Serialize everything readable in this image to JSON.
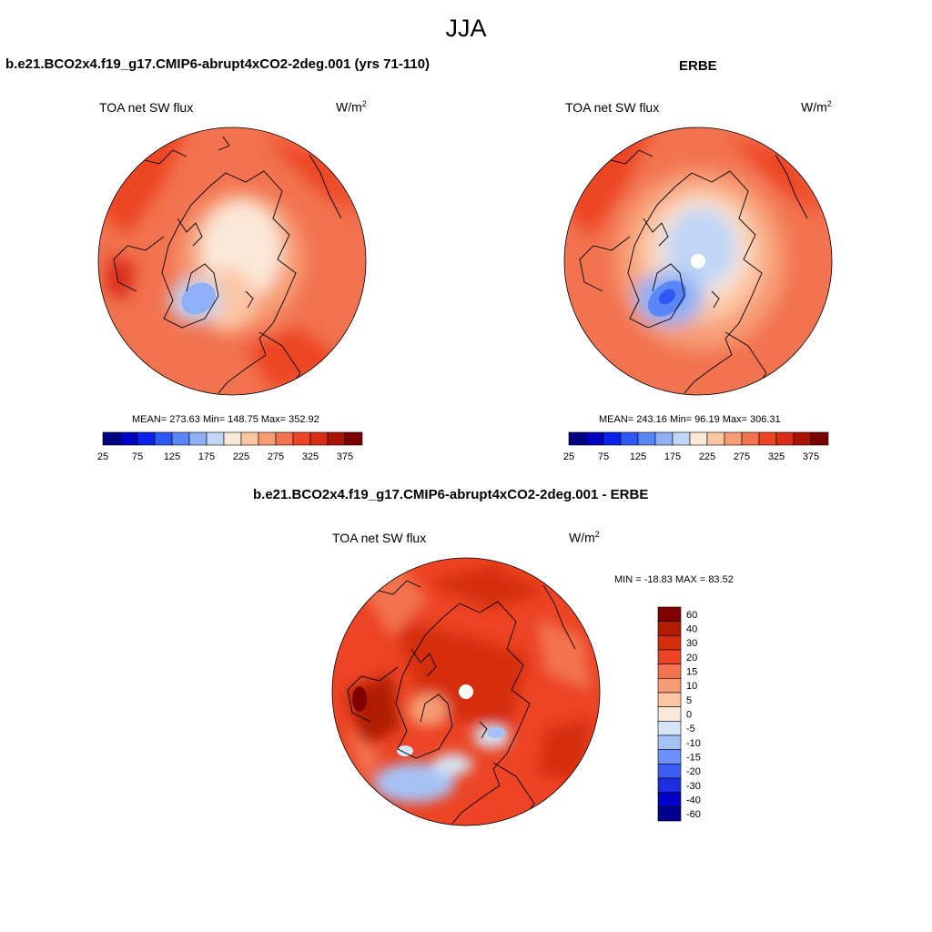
{
  "page": {
    "title": "JJA"
  },
  "colors": {
    "abs": [
      "#000080",
      "#0000c0",
      "#0b22e8",
      "#2e58f6",
      "#5a86f8",
      "#8fb0f5",
      "#c1d6f5",
      "#fbe8d8",
      "#fbc6a4",
      "#f79c74",
      "#f27350",
      "#ec4424",
      "#d82c14",
      "#a81400",
      "#7a0000"
    ],
    "diff": [
      "#000090",
      "#0000c8",
      "#1d2ee0",
      "#3a5ef4",
      "#6b8ff6",
      "#a6c2f5",
      "#d5e6f7",
      "#fbe8d8",
      "#fbc6a4",
      "#f79c74",
      "#f27350",
      "#ec4424",
      "#d62e0c",
      "#b01c00",
      "#800000"
    ],
    "coast": "#000000"
  },
  "panels": {
    "top_left": {
      "title": "b.e21.BCO2x4.f19_g17.CMIP6-abrupt4xCO2-2deg.001 (yrs 71-110)",
      "variable": "TOA net SW flux",
      "units": "W/m",
      "units_sup": "2",
      "stats": "MEAN= 273.63  Min= 148.75  Max= 352.92"
    },
    "top_right": {
      "title": "ERBE",
      "variable": "TOA net SW flux",
      "units": "W/m",
      "units_sup": "2",
      "stats": "MEAN= 243.16  Min=  96.19  Max= 306.31"
    },
    "bottom": {
      "title": "b.e21.BCO2x4.f19_g17.CMIP6-abrupt4xCO2-2deg.001 - ERBE",
      "variable": "TOA net SW flux",
      "units": "W/m",
      "units_sup": "2",
      "stats": "MIN = -18.83 MAX =  83.52"
    }
  },
  "chart_data": [
    {
      "type": "heatmap",
      "projection": "polar-stereographic-north",
      "title": "b.e21.BCO2x4.f19_g17.CMIP6-abrupt4xCO2-2deg.001 (yrs 71-110)",
      "variable": "TOA net SW flux",
      "units": "W/m2",
      "mean": 273.63,
      "min": 148.75,
      "max": 352.92,
      "colorbar_orientation": "horizontal",
      "colorbar_levels": [
        25,
        50,
        75,
        100,
        125,
        150,
        175,
        200,
        225,
        250,
        275,
        300,
        325,
        350,
        375
      ],
      "colorbar_tick_labels": [
        "25",
        "75",
        "125",
        "175",
        "225",
        "275",
        "325",
        "375"
      ]
    },
    {
      "type": "heatmap",
      "projection": "polar-stereographic-north",
      "title": "ERBE",
      "variable": "TOA net SW flux",
      "units": "W/m2",
      "mean": 243.16,
      "min": 96.19,
      "max": 306.31,
      "colorbar_orientation": "horizontal",
      "colorbar_levels": [
        25,
        50,
        75,
        100,
        125,
        150,
        175,
        200,
        225,
        250,
        275,
        300,
        325,
        350,
        375
      ],
      "colorbar_tick_labels": [
        "25",
        "75",
        "125",
        "175",
        "225",
        "275",
        "325",
        "375"
      ]
    },
    {
      "type": "heatmap",
      "projection": "polar-stereographic-north",
      "title": "b.e21.BCO2x4.f19_g17.CMIP6-abrupt4xCO2-2deg.001 - ERBE",
      "variable": "TOA net SW flux",
      "units": "W/m2",
      "min": -18.83,
      "max": 83.52,
      "colorbar_orientation": "vertical",
      "colorbar_levels": [
        -60,
        -40,
        -30,
        -20,
        -15,
        -10,
        -5,
        0,
        5,
        10,
        15,
        20,
        30,
        40,
        60
      ],
      "colorbar_tick_labels": [
        "60",
        "40",
        "30",
        "20",
        "15",
        "10",
        "5",
        "0",
        "-5",
        "-10",
        "-15",
        "-20",
        "-30",
        "-40",
        "-60"
      ]
    }
  ]
}
